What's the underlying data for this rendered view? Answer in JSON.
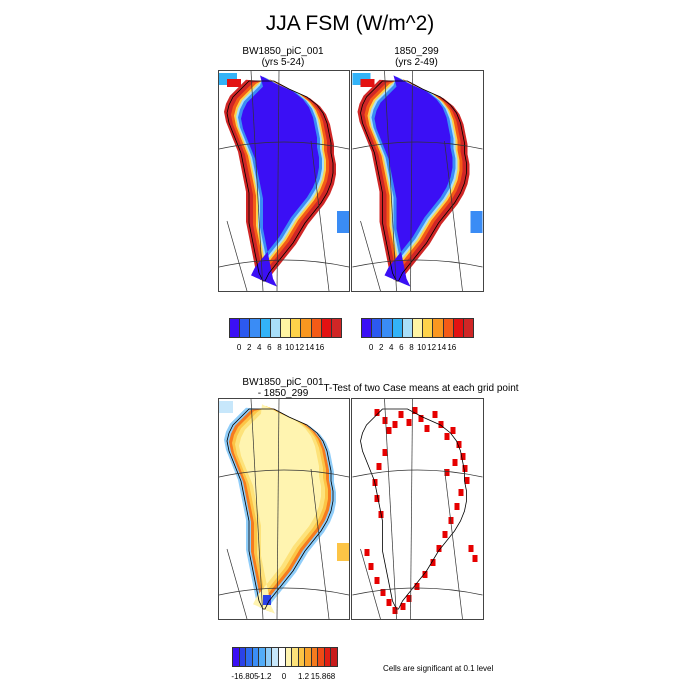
{
  "figure": {
    "title": "JJA FSM (W/m^2)"
  },
  "panels": [
    {
      "title": "BW1850_piC_001",
      "subtitle": "(yrs 5-24)"
    },
    {
      "title": "1850_299",
      "subtitle": "(yrs 2-49)"
    },
    {
      "title": "BW1850_piC_001",
      "subtitle": "- 1850_299"
    },
    {
      "title": "T-Test of two Case means at each grid point",
      "subtitle": ""
    }
  ],
  "colorbars": {
    "abs": {
      "colors": [
        "#3b0ff5",
        "#2c59f0",
        "#3a8cf5",
        "#33b3f7",
        "#a9dff9",
        "#fff4a3",
        "#fdd24a",
        "#f99720",
        "#f45b17",
        "#e31212",
        "#d02626"
      ],
      "ticks": [
        "0",
        "2",
        "4",
        "6",
        "8",
        "10",
        "12",
        "14",
        "16"
      ]
    },
    "diff": {
      "colors": [
        "#3b0ff5",
        "#2a42e8",
        "#2d6cf0",
        "#3b8ef7",
        "#53adf9",
        "#8fcdf9",
        "#c7e7fb",
        "#ffffff",
        "#fff4b0",
        "#fde27a",
        "#fcc446",
        "#f9a22c",
        "#f57b1f",
        "#ef4b16",
        "#e11f14",
        "#c81b1b"
      ],
      "ticks": [
        "-16.805",
        "-1.2",
        "0",
        "1.2",
        "15.868"
      ]
    }
  },
  "legend_note": "Cells are significant at 0.1 level",
  "chart_data": [
    {
      "type": "heatmap",
      "title": "BW1850_piC_001",
      "subtitle": "(yrs 5-24)",
      "variable": "JJA FSM",
      "units": "W/m^2",
      "colorbar_ticks": [
        0,
        2,
        4,
        6,
        8,
        10,
        12,
        14,
        16
      ],
      "interior_value": 0,
      "margin_value": 16
    },
    {
      "type": "heatmap",
      "title": "1850_299",
      "subtitle": "(yrs 2-49)",
      "variable": "JJA FSM",
      "units": "W/m^2",
      "colorbar_ticks": [
        0,
        2,
        4,
        6,
        8,
        10,
        12,
        14,
        16
      ],
      "interior_value": 0,
      "margin_value": 16
    },
    {
      "type": "heatmap",
      "title": "BW1850_piC_001 - 1850_299",
      "colorbar_ticks": [
        -16.805,
        -1.2,
        0,
        1.2,
        15.868
      ],
      "interior_value": 0
    },
    {
      "type": "heatmap",
      "title": "T-Test of two Case means at each grid point",
      "note": "Cells are significant at 0.1 level"
    }
  ]
}
